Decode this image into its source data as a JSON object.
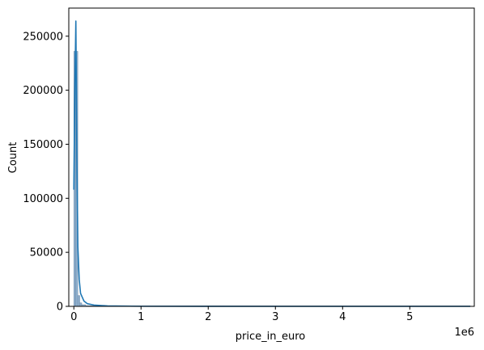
{
  "chart_data": {
    "type": "histogram",
    "xlabel": "price_in_euro",
    "ylabel": "Count",
    "x_offset_label": "1e6",
    "xlim": [
      -75000,
      5960000
    ],
    "ylim": [
      0,
      276000
    ],
    "x_ticks": [
      {
        "value": 0,
        "label": "0"
      },
      {
        "value": 1000000,
        "label": "1"
      },
      {
        "value": 2000000,
        "label": "2"
      },
      {
        "value": 3000000,
        "label": "3"
      },
      {
        "value": 4000000,
        "label": "4"
      },
      {
        "value": 5000000,
        "label": "5"
      }
    ],
    "y_ticks": [
      {
        "value": 0,
        "label": "0"
      },
      {
        "value": 50000,
        "label": "50000"
      },
      {
        "value": 100000,
        "label": "100000"
      },
      {
        "value": 150000,
        "label": "150000"
      },
      {
        "value": 200000,
        "label": "200000"
      },
      {
        "value": 250000,
        "label": "250000"
      }
    ],
    "bins": [
      {
        "x0": 0,
        "x1": 29500,
        "count": 236000
      },
      {
        "x0": 29500,
        "x1": 59000,
        "count": 236000
      },
      {
        "x0": 59000,
        "x1": 88500,
        "count": 10000
      },
      {
        "x0": 88500,
        "x1": 118000,
        "count": 3200
      },
      {
        "x0": 118000,
        "x1": 177000,
        "count": 1500
      },
      {
        "x0": 177000,
        "x1": 295000,
        "count": 600
      },
      {
        "x0": 295000,
        "x1": 590000,
        "count": 150
      },
      {
        "x0": 590000,
        "x1": 5900000,
        "count": 20
      }
    ],
    "kde_points": [
      [
        0,
        108000
      ],
      [
        15000,
        200000
      ],
      [
        30000,
        264000
      ],
      [
        45000,
        140000
      ],
      [
        60000,
        55000
      ],
      [
        80000,
        25000
      ],
      [
        100000,
        12000
      ],
      [
        150000,
        5000
      ],
      [
        200000,
        2500
      ],
      [
        300000,
        1200
      ],
      [
        500000,
        400
      ],
      [
        1000000,
        100
      ],
      [
        2000000,
        30
      ],
      [
        3000000,
        10
      ],
      [
        4000000,
        5
      ],
      [
        5000000,
        3
      ],
      [
        5900000,
        0
      ]
    ],
    "colors": {
      "bar_fill": "#8fb0cf",
      "bar_edge": "#6e8aa6",
      "kde_line": "#1f77b4",
      "axis": "#000000"
    },
    "grid": false
  }
}
